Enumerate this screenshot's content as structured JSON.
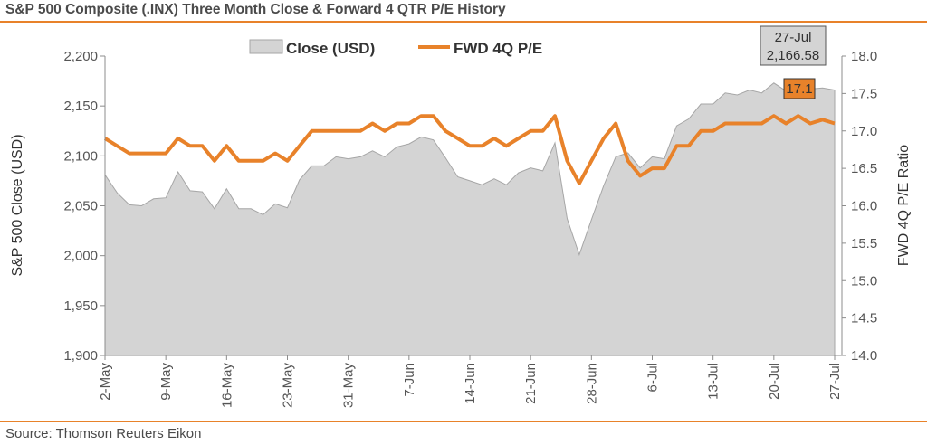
{
  "title": "S&P 500 Composite (.INX) Three Month Close & Forward 4 QTR P/E History",
  "source": "Source: Thomson Reuters Eikon",
  "colors": {
    "accent": "#e8822a",
    "area_fill": "#d4d4d4",
    "area_stroke": "#a6a6a6",
    "rule": "#e8822a"
  },
  "chart_data": {
    "type": "area",
    "title": "S&P 500 Composite (.INX) Three Month Close & Forward 4 QTR P/E History",
    "x_tick_labels": [
      "2-May",
      "9-May",
      "16-May",
      "23-May",
      "31-May",
      "7-Jun",
      "14-Jun",
      "21-Jun",
      "28-Jun",
      "6-Jul",
      "13-Jul",
      "20-Jul",
      "27-Jul"
    ],
    "ylabel": "S&P 500 Close (USD)",
    "y2label": "FWD 4Q P/E Ratio",
    "ylim": [
      1900,
      2200
    ],
    "y_ticks": [
      "1,900",
      "1,950",
      "2,000",
      "2,050",
      "2,100",
      "2,150",
      "2,200"
    ],
    "y2lim": [
      14.0,
      18.0
    ],
    "y2_ticks": [
      "14.0",
      "14.5",
      "15.0",
      "15.5",
      "16.0",
      "16.5",
      "17.0",
      "17.5",
      "18.0"
    ],
    "legend": {
      "placement": "top"
    },
    "series": [
      {
        "name": "Close (USD)",
        "type": "area",
        "axis": "left",
        "values": [
          2081,
          2063,
          2051,
          2050,
          2057,
          2058,
          2084,
          2065,
          2064,
          2047,
          2067,
          2047,
          2047,
          2041,
          2052,
          2048,
          2076,
          2090,
          2090,
          2099,
          2097,
          2099,
          2105,
          2099,
          2109,
          2112,
          2119,
          2116,
          2098,
          2079,
          2075,
          2071,
          2077,
          2071,
          2083,
          2088,
          2085,
          2113,
          2037,
          2001,
          2036,
          2070,
          2099,
          2103,
          2088,
          2099,
          2097,
          2130,
          2137,
          2152,
          2152,
          2163,
          2161,
          2166,
          2163,
          2173,
          2165,
          2169,
          2167,
          2168,
          2166
        ]
      },
      {
        "name": "FWD 4Q P/E",
        "type": "line",
        "axis": "right",
        "values": [
          16.9,
          16.8,
          16.7,
          16.7,
          16.7,
          16.7,
          16.9,
          16.8,
          16.8,
          16.6,
          16.8,
          16.6,
          16.6,
          16.6,
          16.7,
          16.6,
          16.8,
          17.0,
          17.0,
          17.0,
          17.0,
          17.0,
          17.1,
          17.0,
          17.1,
          17.1,
          17.2,
          17.2,
          17.0,
          16.9,
          16.8,
          16.8,
          16.9,
          16.8,
          16.9,
          17.0,
          17.0,
          17.2,
          16.6,
          16.3,
          16.6,
          16.9,
          17.1,
          16.6,
          16.4,
          16.5,
          16.5,
          16.8,
          16.8,
          17.0,
          17.0,
          17.1,
          17.1,
          17.1,
          17.1,
          17.2,
          17.1,
          17.2,
          17.1,
          17.15,
          17.1
        ]
      }
    ],
    "annotations": [
      {
        "label_date": "27-Jul",
        "label_value": "2,166.58",
        "series": "Close (USD)"
      },
      {
        "label_value": "17.1",
        "series": "FWD 4Q P/E"
      }
    ]
  }
}
